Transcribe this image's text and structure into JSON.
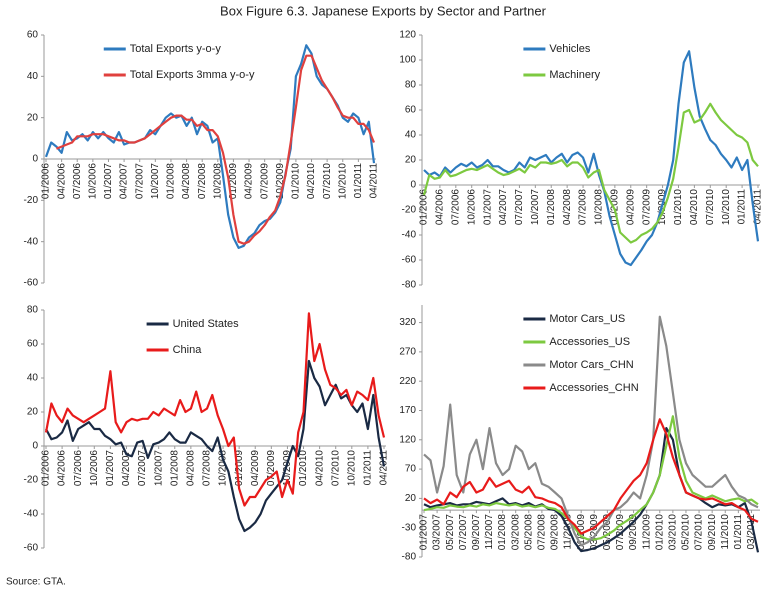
{
  "title": "Box Figure 6.3. Japanese Exports by Sector and Partner",
  "source": "Source: GTA.",
  "chart_data": [
    {
      "type": "line",
      "legend": "upper left",
      "categories": [
        "01/2006",
        null,
        null,
        "04/2006",
        null,
        null,
        "07/2006",
        null,
        null,
        "10/2006",
        null,
        null,
        "01/2007",
        null,
        null,
        "04/2007",
        null,
        null,
        "07/2007",
        null,
        null,
        "10/2007",
        null,
        null,
        "01/2008",
        null,
        null,
        "04/2008",
        null,
        null,
        "07/2008",
        null,
        null,
        "10/2008",
        null,
        null,
        "01/2009",
        null,
        null,
        "04/2009",
        null,
        null,
        "07/2009",
        null,
        null,
        "10/2009",
        null,
        null,
        "01/2010",
        null,
        null,
        "04/2010",
        null,
        null,
        "07/2010",
        null,
        null,
        "10/2010",
        null,
        null,
        "01/2011",
        null,
        null,
        "04/2011"
      ],
      "series": [
        {
          "name": "Total Exports y-o-y",
          "color": "#2e7bbf",
          "values": [
            1,
            8,
            6,
            3,
            13,
            9,
            10,
            12,
            9,
            13,
            10,
            13,
            10,
            8,
            13,
            7,
            8,
            8,
            9,
            10,
            14,
            12,
            16,
            20,
            22,
            20,
            21,
            16,
            20,
            12,
            18,
            16,
            8,
            10,
            -8,
            -27,
            -38,
            -43,
            -42,
            -38,
            -36,
            -32,
            -30,
            -29,
            -26,
            -21,
            -7,
            5,
            40,
            46,
            55,
            51,
            40,
            36,
            34,
            30,
            26,
            20,
            18,
            22,
            20,
            12,
            18,
            -2
          ]
        },
        {
          "name": "Total Exports 3mma y-o-y",
          "color": "#e0403e",
          "values": [
            null,
            null,
            5,
            6,
            7,
            8,
            11,
            11,
            11,
            12,
            12,
            12,
            11,
            10,
            9,
            9,
            8,
            8,
            9,
            10,
            12,
            14,
            16,
            18,
            20,
            21,
            21,
            19,
            19,
            16,
            17,
            14,
            14,
            11,
            3,
            -9,
            -27,
            -40,
            -41,
            -40,
            -37,
            -35,
            -32,
            -28,
            -25,
            -18,
            -8,
            8,
            25,
            43,
            50,
            50,
            44,
            38,
            34,
            30,
            25,
            21,
            20,
            20,
            17,
            17,
            14,
            8
          ]
        }
      ],
      "ylim": [
        -60,
        60
      ],
      "yticks": [
        -60,
        -40,
        -20,
        0,
        20,
        40,
        60
      ]
    },
    {
      "type": "line",
      "legend": "upper center",
      "categories": [
        "01/2006",
        null,
        null,
        "04/2006",
        null,
        null,
        "07/2006",
        null,
        null,
        "10/2006",
        null,
        null,
        "01/2007",
        null,
        null,
        "04/2007",
        null,
        null,
        "07/2007",
        null,
        null,
        "10/2007",
        null,
        null,
        "01/2008",
        null,
        null,
        "04/2008",
        null,
        null,
        "07/2008",
        null,
        null,
        "10/2008",
        null,
        null,
        "01/2009",
        null,
        null,
        "04/2009",
        null,
        null,
        "07/2009",
        null,
        null,
        "10/2009",
        null,
        null,
        "01/2010",
        null,
        null,
        "04/2010",
        null,
        null,
        "07/2010",
        null,
        null,
        "10/2010",
        null,
        null,
        "01/2011",
        null,
        null,
        "04/2011"
      ],
      "series": [
        {
          "name": "Vehicles",
          "color": "#2e7bbf",
          "values": [
            12,
            8,
            10,
            7,
            14,
            10,
            14,
            17,
            15,
            18,
            14,
            16,
            20,
            15,
            15,
            12,
            10,
            12,
            18,
            14,
            22,
            20,
            22,
            24,
            18,
            22,
            25,
            18,
            24,
            26,
            22,
            10,
            25,
            8,
            -5,
            -25,
            -40,
            -55,
            -62,
            -64,
            -58,
            -52,
            -45,
            -40,
            -30,
            -15,
            0,
            20,
            65,
            98,
            107,
            78,
            55,
            45,
            36,
            32,
            25,
            20,
            14,
            22,
            12,
            20,
            -15,
            -45
          ]
        },
        {
          "name": "Machinery",
          "color": "#7dc940",
          "values": [
            -8,
            8,
            5,
            6,
            12,
            7,
            8,
            10,
            12,
            13,
            12,
            14,
            16,
            13,
            10,
            8,
            9,
            11,
            13,
            10,
            16,
            14,
            18,
            18,
            17,
            18,
            20,
            15,
            18,
            18,
            14,
            6,
            10,
            12,
            -4,
            -12,
            -20,
            -38,
            -42,
            -46,
            -44,
            -40,
            -38,
            -35,
            -30,
            -22,
            -10,
            5,
            30,
            58,
            60,
            50,
            52,
            58,
            65,
            58,
            52,
            48,
            44,
            40,
            38,
            34,
            20,
            15
          ]
        }
      ],
      "ylim": [
        -80,
        120
      ],
      "yticks": [
        -80,
        -60,
        -40,
        -20,
        0,
        20,
        40,
        60,
        80,
        100,
        120
      ]
    },
    {
      "type": "line",
      "legend": "upper center",
      "categories": [
        "01/2006",
        null,
        null,
        "04/2006",
        null,
        null,
        "07/2006",
        null,
        null,
        "10/2006",
        null,
        null,
        "01/2007",
        null,
        null,
        "04/2007",
        null,
        null,
        "07/2007",
        null,
        null,
        "10/2007",
        null,
        null,
        "01/2008",
        null,
        null,
        "04/2008",
        null,
        null,
        "07/2008",
        null,
        null,
        "10/2008",
        null,
        null,
        "01/2009",
        null,
        null,
        "04/2009",
        null,
        null,
        "07/2009",
        null,
        null,
        "10/2009",
        null,
        null,
        "01/2010",
        null,
        null,
        "04/2010",
        null,
        null,
        "07/2010",
        null,
        null,
        "10/2010",
        null,
        null,
        "01/2011",
        null,
        null,
        "04/2011"
      ],
      "series": [
        {
          "name": "United States",
          "color": "#1a2a44",
          "values": [
            10,
            4,
            5,
            8,
            15,
            3,
            10,
            12,
            14,
            10,
            10,
            6,
            4,
            1,
            2,
            -5,
            -6,
            2,
            3,
            -7,
            1,
            2,
            4,
            8,
            4,
            2,
            2,
            8,
            6,
            4,
            0,
            -3,
            5,
            -8,
            -15,
            -30,
            -43,
            -50,
            -48,
            -45,
            -40,
            -32,
            -28,
            -24,
            -20,
            -10,
            0,
            -6,
            10,
            50,
            40,
            35,
            24,
            30,
            36,
            28,
            30,
            24,
            20,
            25,
            10,
            30,
            5,
            -12
          ]
        },
        {
          "name": "China",
          "color": "#e81b1b",
          "values": [
            8,
            25,
            18,
            14,
            22,
            18,
            16,
            14,
            16,
            18,
            20,
            22,
            44,
            14,
            8,
            14,
            16,
            15,
            16,
            16,
            20,
            18,
            22,
            20,
            18,
            27,
            20,
            22,
            32,
            20,
            22,
            30,
            18,
            10,
            0,
            5,
            -25,
            -35,
            -30,
            -30,
            -25,
            -20,
            -18,
            -15,
            -30,
            -20,
            -28,
            8,
            20,
            78,
            50,
            60,
            45,
            36,
            34,
            30,
            33,
            24,
            32,
            30,
            27,
            40,
            18,
            5
          ]
        }
      ],
      "ylim": [
        -60,
        80
      ],
      "yticks": [
        -60,
        -40,
        -20,
        0,
        20,
        40,
        60,
        80
      ]
    },
    {
      "type": "line",
      "legend": "upper center",
      "categories": [
        "01/2007",
        null,
        "03/2007",
        null,
        "05/2007",
        null,
        "07/2007",
        null,
        "09/2007",
        null,
        "11/2007",
        null,
        "01/2008",
        null,
        "03/2008",
        null,
        "05/2008",
        null,
        "07/2008",
        null,
        "09/2008",
        null,
        "11/2008",
        null,
        "01/2009",
        null,
        "03/2009",
        null,
        "05/2009",
        null,
        "07/2009",
        null,
        "09/2009",
        null,
        "11/2009",
        null,
        "01/2010",
        null,
        "03/2010",
        null,
        "05/2010",
        null,
        "07/2010",
        null,
        "09/2010",
        null,
        "11/2010",
        null,
        "01/2011",
        null,
        "03/2011",
        null
      ],
      "series": [
        {
          "name": "Motor Cars_US",
          "color": "#1a2a44",
          "values": [
            10,
            5,
            8,
            10,
            12,
            8,
            10,
            10,
            14,
            12,
            10,
            15,
            20,
            10,
            12,
            8,
            12,
            6,
            10,
            2,
            0,
            -10,
            -30,
            -55,
            -70,
            -68,
            -65,
            -60,
            -55,
            -48,
            -40,
            -30,
            -20,
            -8,
            10,
            30,
            60,
            140,
            120,
            60,
            30,
            25,
            20,
            12,
            5,
            10,
            8,
            10,
            5,
            12,
            -20,
            -72
          ]
        },
        {
          "name": "Accessories_US",
          "color": "#7dc940",
          "values": [
            0,
            2,
            5,
            4,
            8,
            6,
            5,
            8,
            6,
            10,
            8,
            12,
            10,
            8,
            10,
            6,
            8,
            5,
            8,
            4,
            2,
            -5,
            -15,
            -30,
            -45,
            -50,
            -50,
            -48,
            -42,
            -35,
            -25,
            -18,
            -10,
            0,
            10,
            30,
            60,
            110,
            160,
            90,
            50,
            30,
            25,
            20,
            25,
            20,
            15,
            18,
            20,
            15,
            18,
            10
          ]
        },
        {
          "name": "Motor Cars_CHN",
          "color": "#8a8a8a",
          "values": [
            95,
            85,
            30,
            75,
            180,
            60,
            30,
            95,
            120,
            70,
            140,
            80,
            60,
            70,
            110,
            100,
            70,
            80,
            45,
            40,
            30,
            20,
            -10,
            -40,
            -60,
            -55,
            -45,
            -30,
            -20,
            0,
            5,
            15,
            30,
            20,
            60,
            120,
            330,
            280,
            200,
            120,
            80,
            60,
            50,
            40,
            40,
            50,
            60,
            40,
            25,
            20,
            10,
            5
          ]
        },
        {
          "name": "Accessories_CHN",
          "color": "#e81b1b",
          "values": [
            20,
            12,
            18,
            10,
            30,
            22,
            40,
            48,
            30,
            35,
            55,
            40,
            45,
            50,
            35,
            30,
            40,
            22,
            20,
            15,
            12,
            5,
            -15,
            -25,
            -40,
            -35,
            -30,
            -20,
            -10,
            0,
            20,
            35,
            50,
            60,
            80,
            120,
            155,
            130,
            90,
            60,
            30,
            25,
            20,
            18,
            20,
            15,
            10,
            12,
            5,
            0,
            -15,
            -20
          ]
        }
      ],
      "ylim": [
        -80,
        350
      ],
      "yticks": [
        -80,
        -30,
        20,
        70,
        120,
        170,
        220,
        270,
        320
      ]
    }
  ]
}
